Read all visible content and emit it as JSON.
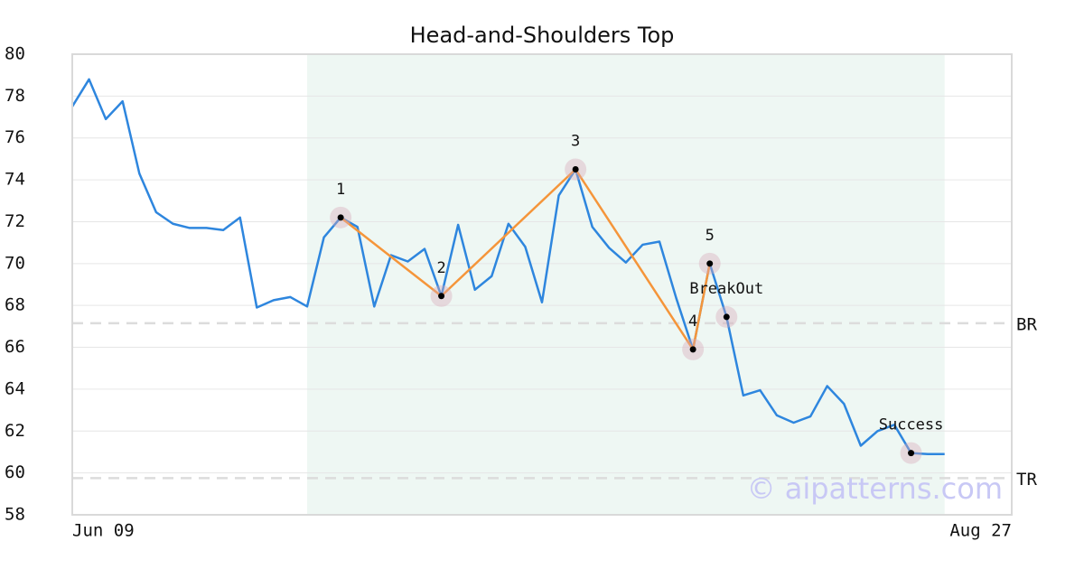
{
  "chart_data": {
    "type": "line",
    "title": "Head-and-Shoulders Top",
    "x": [
      0,
      1,
      2,
      3,
      4,
      5,
      6,
      7,
      8,
      9,
      10,
      11,
      12,
      13,
      14,
      15,
      16,
      17,
      18,
      19,
      20,
      21,
      22,
      23,
      24,
      25,
      26,
      27,
      28,
      29,
      30,
      31,
      32,
      33,
      34,
      35,
      36,
      37,
      38,
      39,
      40,
      41,
      42,
      43,
      44,
      45,
      46,
      47,
      48,
      49,
      50,
      51,
      52
    ],
    "series": [
      {
        "color": "#2e86de",
        "values": [
          77.5,
          78.8,
          76.9,
          77.75,
          74.3,
          72.45,
          71.9,
          71.7,
          71.7,
          71.6,
          72.2,
          67.9,
          68.25,
          68.4,
          67.95,
          71.25,
          72.2,
          71.75,
          67.95,
          70.4,
          70.1,
          70.7,
          68.45,
          71.85,
          68.75,
          69.4,
          71.9,
          70.8,
          68.15,
          73.25,
          74.5,
          71.75,
          70.75,
          70.05,
          70.9,
          71.05,
          68.35,
          65.9,
          70.0,
          67.45,
          63.7,
          63.95,
          62.75,
          62.4,
          62.7,
          64.15,
          63.3,
          61.3,
          62.0,
          62.3,
          60.95,
          60.9,
          60.9
        ]
      }
    ],
    "pattern": {
      "color": "#f5953a",
      "x": [
        16,
        22,
        30,
        37,
        38
      ],
      "values": [
        72.2,
        68.45,
        74.5,
        65.9,
        70.0
      ],
      "labels": [
        "1",
        "2",
        "3",
        "4",
        "5"
      ]
    },
    "markers": {
      "x": [
        39,
        50
      ],
      "values": [
        67.45,
        60.95
      ],
      "labels": [
        "BreakOut",
        "Success"
      ]
    },
    "reference_lines": [
      {
        "label": "BR",
        "value": 67.15
      },
      {
        "label": "TR",
        "value": 59.75
      }
    ],
    "shaded_range": [
      14,
      52
    ],
    "xlim": [
      0,
      56
    ],
    "xticks": [
      {
        "value": 0,
        "label": "Jun 09"
      },
      {
        "value": 56,
        "label": "Aug 27"
      }
    ],
    "ylim": [
      58,
      80
    ],
    "yticks": [
      58,
      60,
      62,
      64,
      66,
      68,
      70,
      72,
      74,
      76,
      78,
      80
    ],
    "grid": true,
    "watermark": "© aipatterns.com"
  }
}
